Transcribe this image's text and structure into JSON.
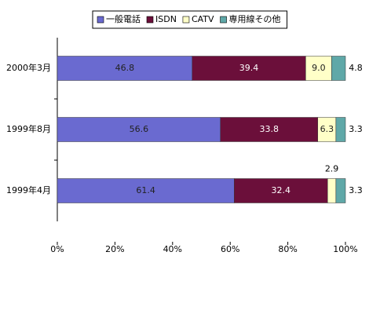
{
  "chart_data": {
    "type": "stacked-bar-horizontal",
    "categories": [
      "2000年3月",
      "1999年8月",
      "1999年4月"
    ],
    "series": [
      {
        "name": "一般電話",
        "color": "#6a6ad0",
        "values": [
          46.8,
          56.6,
          61.4
        ]
      },
      {
        "name": "ISDN",
        "color": "#6b0f3a",
        "values": [
          39.4,
          33.8,
          32.4
        ]
      },
      {
        "name": "CATV",
        "color": "#ffffc8",
        "values": [
          9,
          6.3,
          2.9
        ],
        "value_labels": [
          "9.0",
          "6.3",
          "2.9"
        ]
      },
      {
        "name": "専用線その他",
        "color": "#5fa8a8",
        "values": [
          4.8,
          3.3,
          3.3
        ]
      }
    ],
    "xlim": [
      0,
      100
    ],
    "xticks": [
      {
        "value": 0,
        "label": "0%"
      },
      {
        "value": 20,
        "label": "20%"
      },
      {
        "value": 40,
        "label": "40%"
      },
      {
        "value": 60,
        "label": "60%"
      },
      {
        "value": 80,
        "label": "80%"
      },
      {
        "value": 100,
        "label": "100%"
      }
    ],
    "legend": "top"
  }
}
